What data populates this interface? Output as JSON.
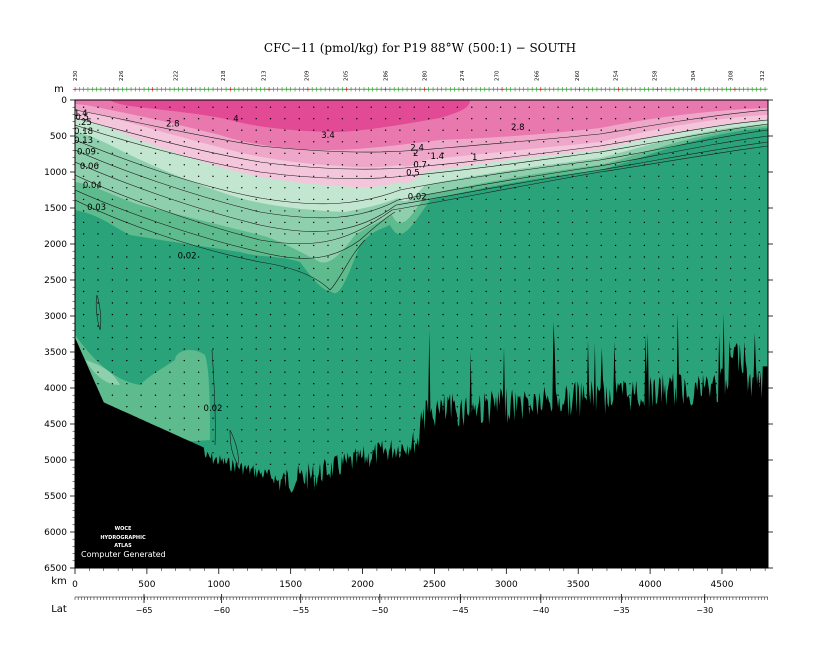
{
  "title": "CFC−11 (pmol/kg) for P19 88°W (500:1) − SOUTH",
  "colors": {
    "deep_green": "#2aa37b",
    "mid_green": "#5ebb8e",
    "light_green": "#8ed0ad",
    "pale_green": "#c3e6d0",
    "pale_pink": "#f4c6dc",
    "light_pink": "#eea7c8",
    "mid_pink": "#e978ae",
    "hot_pink": "#e24a95",
    "topography": "#000000",
    "station_marker": "#cc0000",
    "grid_marker": "#00aa00"
  },
  "chart_data": {
    "type": "section",
    "title": "CFC−11 (pmol/kg) for P19 88°W (500:1) − SOUTH",
    "xlabel": "km",
    "ylabel": "m",
    "secondary_xlabel": "Lat",
    "xlim": [
      0,
      4820
    ],
    "ylim": [
      6500,
      0
    ],
    "x_ticks": [
      0,
      500,
      1000,
      1500,
      2000,
      2500,
      3000,
      3500,
      4000,
      4500
    ],
    "y_ticks": [
      0,
      500,
      1000,
      1500,
      2000,
      2500,
      3000,
      3500,
      4000,
      4500,
      5000,
      5500,
      6000,
      6500
    ],
    "lat_ticks": [
      {
        "label": "−65",
        "km": 480
      },
      {
        "label": "−60",
        "km": 1020
      },
      {
        "label": "−55",
        "km": 1570
      },
      {
        "label": "−50",
        "km": 2120
      },
      {
        "label": "−45",
        "km": 2680
      },
      {
        "label": "−40",
        "km": 3240
      },
      {
        "label": "−35",
        "km": 3800
      },
      {
        "label": "−30",
        "km": 4380
      }
    ],
    "station_labels": [
      {
        "label": "230",
        "km": 0
      },
      {
        "label": "226",
        "km": 320
      },
      {
        "label": "222",
        "km": 700
      },
      {
        "label": "218",
        "km": 1030
      },
      {
        "label": "213",
        "km": 1310
      },
      {
        "label": "209",
        "km": 1610
      },
      {
        "label": "205",
        "km": 1880
      },
      {
        "label": "286",
        "km": 2160
      },
      {
        "label": "280",
        "km": 2430
      },
      {
        "label": "274",
        "km": 2690
      },
      {
        "label": "270",
        "km": 2930
      },
      {
        "label": "266",
        "km": 3210
      },
      {
        "label": "260",
        "km": 3490
      },
      {
        "label": "254",
        "km": 3760
      },
      {
        "label": "258",
        "km": 4030
      },
      {
        "label": "304",
        "km": 4300
      },
      {
        "label": "308",
        "km": 4560
      },
      {
        "label": "312",
        "km": 4780
      }
    ],
    "contour_labels": [
      {
        "label": "4",
        "x": 1120,
        "y": 300
      },
      {
        "label": "2.8",
        "x": 680,
        "y": 370
      },
      {
        "label": "3.4",
        "x": 1760,
        "y": 530
      },
      {
        "label": "2.8",
        "x": 3080,
        "y": 420
      },
      {
        "label": "2.4",
        "x": 2380,
        "y": 700
      },
      {
        "label": "2",
        "x": 2370,
        "y": 780
      },
      {
        "label": "1.4",
        "x": 2520,
        "y": 820
      },
      {
        "label": "1",
        "x": 2780,
        "y": 830
      },
      {
        "label": "0.7",
        "x": 2400,
        "y": 940
      },
      {
        "label": "0.5",
        "x": 2350,
        "y": 1050
      },
      {
        "label": "0.02",
        "x": 2380,
        "y": 1380
      },
      {
        "label": "1.4",
        "x": 40,
        "y": 220
      },
      {
        "label": "0.5",
        "x": 50,
        "y": 280
      },
      {
        "label": ".25",
        "x": 70,
        "y": 350
      },
      {
        "label": "0.18",
        "x": 60,
        "y": 470
      },
      {
        "label": "0.13",
        "x": 60,
        "y": 600
      },
      {
        "label": "0.09",
        "x": 80,
        "y": 760
      },
      {
        "label": "0.06",
        "x": 100,
        "y": 960
      },
      {
        "label": "0.04",
        "x": 120,
        "y": 1220
      },
      {
        "label": "0.03",
        "x": 150,
        "y": 1530
      },
      {
        "label": "0.02",
        "x": 780,
        "y": 2200
      },
      {
        "label": "0.02",
        "x": 960,
        "y": 4320
      }
    ],
    "grid": false
  },
  "watermark": {
    "line1": "WOCE",
    "line2": "HYDROGRAPHIC",
    "line3": "ATLAS",
    "credit": "Computer Generated"
  }
}
